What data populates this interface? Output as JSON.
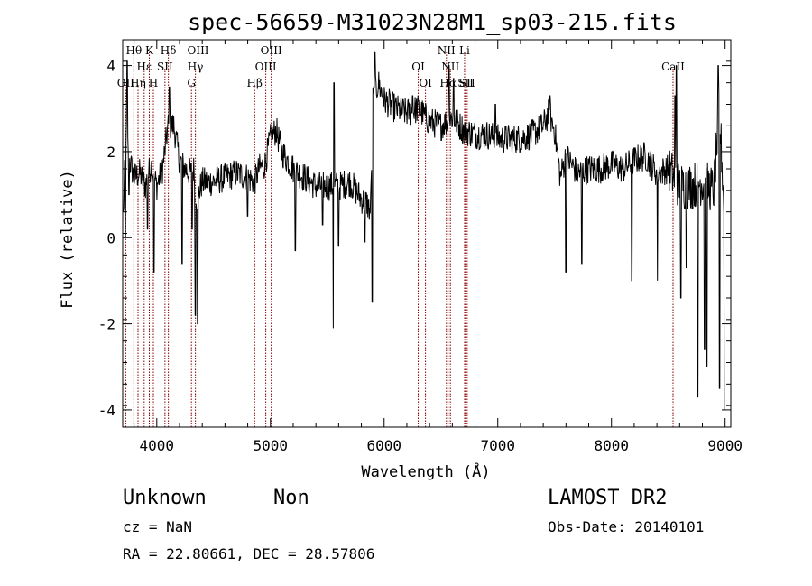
{
  "chart_data": {
    "type": "line",
    "title": "spec-56659-M31023N28M1_sp03-215.fits",
    "xlabel": "Wavelength (Å)",
    "ylabel": "Flux (relative)",
    "xlim": [
      3700,
      9050
    ],
    "ylim": [
      -4.4,
      4.6
    ],
    "xticks": [
      4000,
      5000,
      6000,
      7000,
      8000,
      9000
    ],
    "yticks": [
      -4,
      -2,
      0,
      2,
      4
    ],
    "grid": false,
    "line_color": "#000000",
    "marker_color": "#8b0000",
    "lines": [
      {
        "label": "Hθ",
        "x": 3798,
        "row": 0
      },
      {
        "label": "Hη",
        "x": 3835,
        "row": 2
      },
      {
        "label": "OII",
        "x": 3727,
        "row": 2
      },
      {
        "label": "Hε",
        "x": 3889,
        "row": 1
      },
      {
        "label": "K",
        "x": 3934,
        "row": 0
      },
      {
        "label": "H",
        "x": 3970,
        "row": 2
      },
      {
        "label": "Hδ",
        "x": 4102,
        "row": 0
      },
      {
        "label": "SII",
        "x": 4072,
        "row": 1
      },
      {
        "label": "OIII",
        "x": 4363,
        "row": 0
      },
      {
        "label": "Hγ",
        "x": 4340,
        "row": 1
      },
      {
        "label": "G",
        "x": 4305,
        "row": 2
      },
      {
        "label": "Hβ",
        "x": 4861,
        "row": 2
      },
      {
        "label": "OIII",
        "x": 4959,
        "row": 1
      },
      {
        "label": "OIII",
        "x": 5007,
        "row": 0
      },
      {
        "label": "OI",
        "x": 6300,
        "row": 1
      },
      {
        "label": "OI",
        "x": 6364,
        "row": 2
      },
      {
        "label": "NII",
        "x": 6548,
        "row": 0
      },
      {
        "label": "NII",
        "x": 6583,
        "row": 1
      },
      {
        "label": "Hα",
        "x": 6563,
        "row": 2
      },
      {
        "label": "Li",
        "x": 6708,
        "row": 0
      },
      {
        "label": "SII",
        "x": 6717,
        "row": 2
      },
      {
        "label": "SII",
        "x": 6731,
        "row": 2
      },
      {
        "label": "CaII",
        "x": 8542,
        "row": 1
      }
    ],
    "spectrum_knots": [
      [
        3705,
        0.5
      ],
      [
        3730,
        2.5
      ],
      [
        3760,
        1.8
      ],
      [
        3800,
        1.4
      ],
      [
        3850,
        1.5
      ],
      [
        3900,
        1.2
      ],
      [
        3950,
        1.7
      ],
      [
        4000,
        1.2
      ],
      [
        4050,
        1.6
      ],
      [
        4100,
        2.6
      ],
      [
        4150,
        2.6
      ],
      [
        4200,
        1.8
      ],
      [
        4250,
        1.6
      ],
      [
        4300,
        1.5
      ],
      [
        4330,
        1.6
      ],
      [
        4350,
        0.9
      ],
      [
        4400,
        1.3
      ],
      [
        4500,
        1.3
      ],
      [
        4600,
        1.4
      ],
      [
        4700,
        1.5
      ],
      [
        4800,
        1.4
      ],
      [
        4860,
        1.3
      ],
      [
        4900,
        1.6
      ],
      [
        4950,
        1.7
      ],
      [
        5000,
        2.3
      ],
      [
        5050,
        2.5
      ],
      [
        5100,
        2.0
      ],
      [
        5200,
        1.6
      ],
      [
        5300,
        1.4
      ],
      [
        5400,
        1.2
      ],
      [
        5500,
        1.2
      ],
      [
        5600,
        1.2
      ],
      [
        5700,
        1.3
      ],
      [
        5800,
        0.9
      ],
      [
        5850,
        0.8
      ],
      [
        5880,
        0.6
      ],
      [
        5900,
        3.2
      ],
      [
        5950,
        3.6
      ],
      [
        6000,
        3.2
      ],
      [
        6100,
        3.0
      ],
      [
        6200,
        2.9
      ],
      [
        6300,
        3.0
      ],
      [
        6400,
        2.7
      ],
      [
        6500,
        2.6
      ],
      [
        6600,
        2.8
      ],
      [
        6700,
        2.5
      ],
      [
        6800,
        2.4
      ],
      [
        6900,
        2.4
      ],
      [
        7000,
        2.3
      ],
      [
        7100,
        2.3
      ],
      [
        7200,
        2.3
      ],
      [
        7300,
        2.4
      ],
      [
        7400,
        2.6
      ],
      [
        7450,
        2.9
      ],
      [
        7500,
        2.5
      ],
      [
        7550,
        1.4
      ],
      [
        7600,
        1.9
      ],
      [
        7700,
        1.5
      ],
      [
        7800,
        1.6
      ],
      [
        7900,
        1.6
      ],
      [
        8000,
        1.7
      ],
      [
        8100,
        1.6
      ],
      [
        8200,
        1.8
      ],
      [
        8300,
        1.9
      ],
      [
        8400,
        1.5
      ],
      [
        8500,
        1.6
      ],
      [
        8600,
        1.2
      ],
      [
        8700,
        1.2
      ],
      [
        8800,
        1.3
      ],
      [
        8900,
        1.1
      ],
      [
        8950,
        3.0
      ],
      [
        9000,
        0.2
      ]
    ],
    "spectrum_dips": [
      [
        3722,
        0.0
      ],
      [
        3755,
        1.0
      ],
      [
        3920,
        0.2
      ],
      [
        3975,
        -0.8
      ],
      [
        4222,
        -0.6
      ],
      [
        4310,
        0.2
      ],
      [
        4340,
        -1.8
      ],
      [
        4360,
        -2.0
      ],
      [
        4800,
        0.5
      ],
      [
        5220,
        -0.3
      ],
      [
        5460,
        0.3
      ],
      [
        5555,
        -2.1
      ],
      [
        5600,
        -0.2
      ],
      [
        5830,
        -0.1
      ],
      [
        5895,
        -1.5
      ],
      [
        5920,
        -0.9
      ],
      [
        7600,
        -0.8
      ],
      [
        7740,
        -0.6
      ],
      [
        8180,
        -1.0
      ],
      [
        8405,
        -1.0
      ],
      [
        8610,
        -1.4
      ],
      [
        8660,
        -0.7
      ],
      [
        8760,
        -3.7
      ],
      [
        8820,
        -2.6
      ],
      [
        8840,
        -3.0
      ],
      [
        8950,
        -3.5
      ],
      [
        8995,
        -4.0
      ]
    ],
    "spectrum_spikes": [
      [
        3740,
        4.1
      ],
      [
        4110,
        3.5
      ],
      [
        5560,
        3.6
      ],
      [
        5920,
        4.3
      ],
      [
        6250,
        3.3
      ],
      [
        6570,
        4.0
      ],
      [
        6610,
        3.7
      ],
      [
        6980,
        3.1
      ],
      [
        7460,
        3.3
      ],
      [
        8560,
        3.3
      ],
      [
        8570,
        4.0
      ],
      [
        8940,
        4.0
      ]
    ],
    "noise_amplitude": 0.35
  },
  "footer": {
    "object_class": "Unknown",
    "subclass": "Non",
    "cz_line": "cz = NaN",
    "coords_line": "RA =  22.80661, DEC =  28.57806",
    "survey": "LAMOST DR2",
    "obs_date_line": "Obs-Date: 20140101"
  }
}
